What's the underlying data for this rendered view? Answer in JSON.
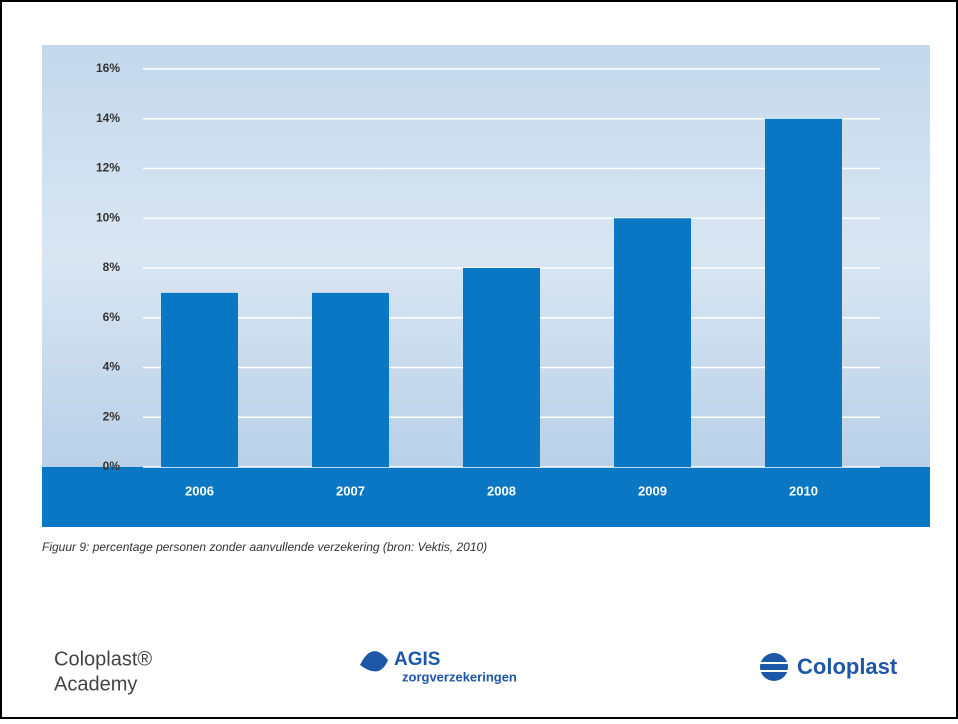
{
  "chart_data": {
    "type": "bar",
    "categories": [
      "2006",
      "2007",
      "2008",
      "2009",
      "2010"
    ],
    "values": [
      7,
      7,
      8,
      10,
      14
    ],
    "color": "#0a77c5",
    "ylim": [
      0,
      16
    ],
    "yticks": [
      {
        "value": 0,
        "label": "0%"
      },
      {
        "value": 2,
        "label": "2%"
      },
      {
        "value": 4,
        "label": "4%"
      },
      {
        "value": 6,
        "label": "6%"
      },
      {
        "value": 8,
        "label": "8%"
      },
      {
        "value": 10,
        "label": "10%"
      },
      {
        "value": 12,
        "label": "12%"
      },
      {
        "value": 14,
        "label": "14%"
      },
      {
        "value": 16,
        "label": "16%"
      }
    ],
    "grid": true,
    "caption": "Figuur 9: percentage personen zonder aanvullende verzekering  (bron: Vektis, 2010)"
  },
  "footer": {
    "left": [
      "Coloplast®",
      "Academy"
    ],
    "center": [
      "AGIS",
      "zorgverzekeringen"
    ],
    "right": "Coloplast"
  }
}
